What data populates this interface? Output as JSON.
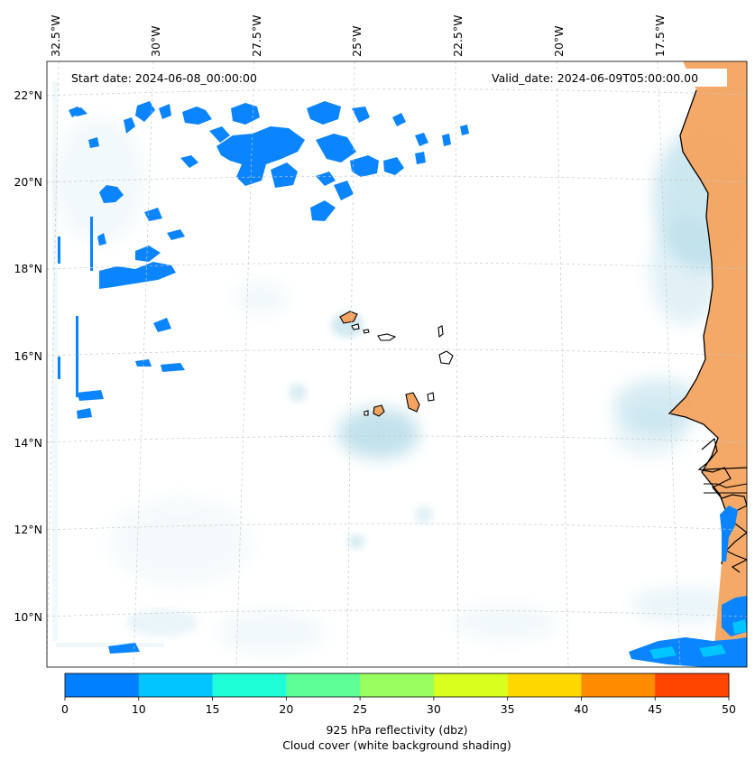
{
  "annotations": {
    "start_date": "Start date: 2024-06-08_00:00:00",
    "valid_date": "Valid_date: 2024-06-09T05:00:00.00"
  },
  "map": {
    "lon_ticks": [
      "32.5°W",
      "30°W",
      "27.5°W",
      "25°W",
      "22.5°W",
      "20°W",
      "17.5°W"
    ],
    "lat_ticks": [
      "22°N",
      "20°N",
      "18°N",
      "16°N",
      "14°N",
      "12°N",
      "10°N"
    ],
    "colors": {
      "land": "#f4a460",
      "cloud": "#add8e6",
      "coast": "#000000",
      "grid": "#c8c8c8"
    }
  },
  "colorbar": {
    "ticks": [
      "0",
      "10",
      "15",
      "20",
      "25",
      "30",
      "35",
      "40",
      "45",
      "50"
    ],
    "colors": [
      "#007fff",
      "#00c5ff",
      "#1effd8",
      "#5eff96",
      "#98ff5e",
      "#d8ff1e",
      "#ffd800",
      "#ff8c00",
      "#ff4500"
    ],
    "label_line1": "925 hPa reflectivity (dbz)",
    "label_line2": "Cloud cover (white background shading)"
  }
}
